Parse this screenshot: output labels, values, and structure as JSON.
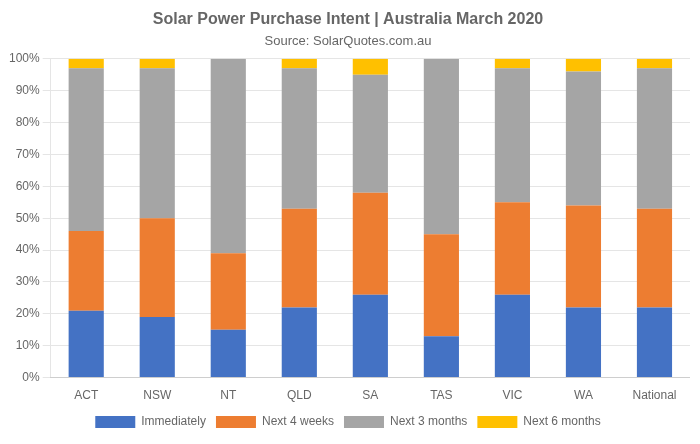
{
  "chart_data": {
    "type": "bar",
    "title": "Solar Power Purchase Intent | Australia March 2020",
    "subtitle": "Source: SolarQuotes.com.au",
    "categories": [
      "ACT",
      "NSW",
      "NT",
      "QLD",
      "SA",
      "TAS",
      "VIC",
      "WA",
      "National"
    ],
    "series": [
      {
        "name": "Immediately",
        "color": "#4472C4",
        "values": [
          21,
          19,
          15,
          22,
          26,
          13,
          26,
          22,
          22
        ]
      },
      {
        "name": "Next 4 weeks",
        "color": "#ED7D31",
        "values": [
          25,
          31,
          24,
          31,
          32,
          32,
          29,
          32,
          31
        ]
      },
      {
        "name": "Next 3 months",
        "color": "#A5A5A5",
        "values": [
          51,
          47,
          61,
          44,
          37,
          55,
          42,
          42,
          44
        ]
      },
      {
        "name": "Next 6 months",
        "color": "#FFC000",
        "values": [
          3,
          3,
          0,
          3,
          5,
          0,
          3,
          4,
          3
        ]
      }
    ],
    "stacked": true,
    "ylim": [
      0,
      100
    ],
    "yticks": [
      {
        "value": 0,
        "label": "0%"
      },
      {
        "value": 10,
        "label": "10%"
      },
      {
        "value": 20,
        "label": "20%"
      },
      {
        "value": 30,
        "label": "30%"
      },
      {
        "value": 40,
        "label": "40%"
      },
      {
        "value": 50,
        "label": "50%"
      },
      {
        "value": 60,
        "label": "60%"
      },
      {
        "value": 70,
        "label": "70%"
      },
      {
        "value": 80,
        "label": "80%"
      },
      {
        "value": 90,
        "label": "90%"
      },
      {
        "value": 100,
        "label": "100%"
      }
    ],
    "grid": true,
    "legend": "bottom"
  }
}
